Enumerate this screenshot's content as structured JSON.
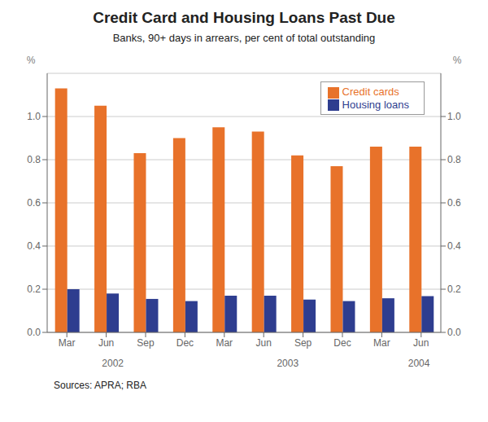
{
  "chart_data": {
    "type": "bar",
    "title": "Credit Card and Housing Loans Past Due",
    "subtitle": "Banks, 90+ days in arrears, per cent of total outstanding",
    "source": "Sources: APRA; RBA",
    "categories": [
      "Mar",
      "Jun",
      "Sep",
      "Dec",
      "Mar",
      "Jun",
      "Sep",
      "Dec",
      "Mar",
      "Jun"
    ],
    "annotations": [
      {
        "text": "2002",
        "x": 1.5
      },
      {
        "text": "2003",
        "x": 5.5
      },
      {
        "text": "2004",
        "x": 8.5
      }
    ],
    "series": [
      {
        "name": "Credit cards",
        "color": "#E8722A",
        "values": [
          1.13,
          1.05,
          0.83,
          0.9,
          0.95,
          0.93,
          0.82,
          0.77,
          0.86,
          0.86
        ]
      },
      {
        "name": "Housing loans",
        "color": "#2E3D8F",
        "values": [
          0.2,
          0.18,
          0.155,
          0.145,
          0.17,
          0.17,
          0.152,
          0.145,
          0.158,
          0.168
        ]
      }
    ],
    "ylim": [
      0.0,
      1.2
    ],
    "yticks": [
      {
        "value": 0.0,
        "label": "0.0"
      },
      0.2,
      0.4,
      0.6,
      0.8,
      {
        "value": 1.0,
        "label": "1.0"
      }
    ],
    "y2lim": [
      0.0,
      1.2
    ],
    "y2ticks": [
      {
        "value": 0.0,
        "label": "0.0"
      },
      0.2,
      0.4,
      0.6,
      0.8,
      {
        "value": 1.0,
        "label": "1.0"
      }
    ],
    "ylabel": "%",
    "y2label": "%",
    "grid": true,
    "legend": "upper right"
  }
}
